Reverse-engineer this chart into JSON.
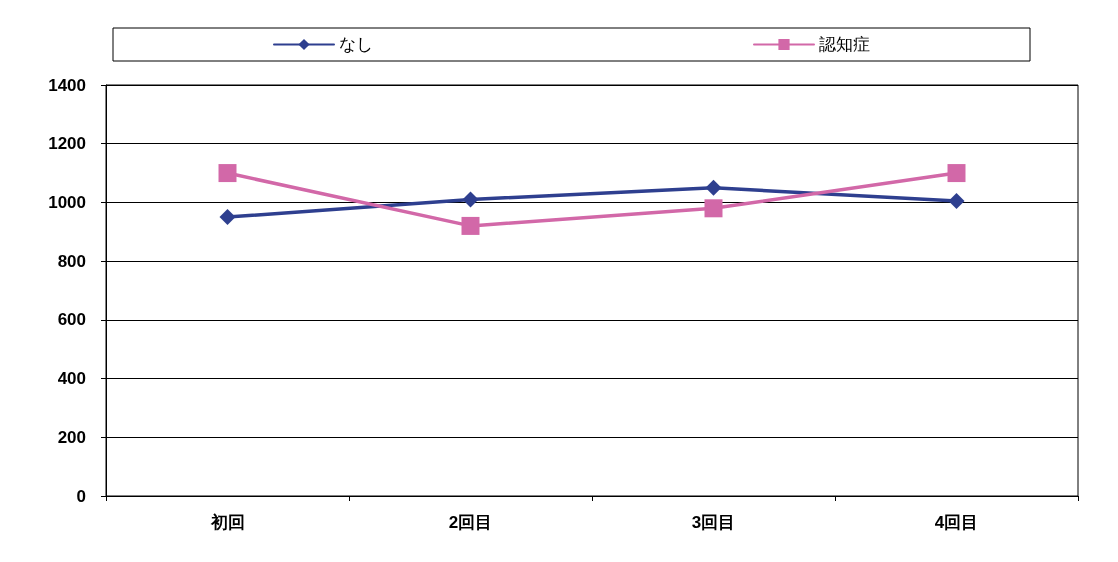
{
  "chart_data": {
    "type": "line",
    "categories": [
      "初回",
      "2回目",
      "3回目",
      "4回目"
    ],
    "series": [
      {
        "name": "なし",
        "color": "#2e3f8f",
        "marker": "diamond",
        "values": [
          950,
          1010,
          1050,
          1005
        ]
      },
      {
        "name": "認知症",
        "color": "#d268a8",
        "marker": "square",
        "values": [
          1100,
          920,
          980,
          1100
        ]
      }
    ],
    "ylim": [
      0,
      1400
    ],
    "yticks": [
      0,
      200,
      400,
      600,
      800,
      1000,
      1200,
      1400
    ],
    "grid": "y",
    "legend": "top"
  }
}
